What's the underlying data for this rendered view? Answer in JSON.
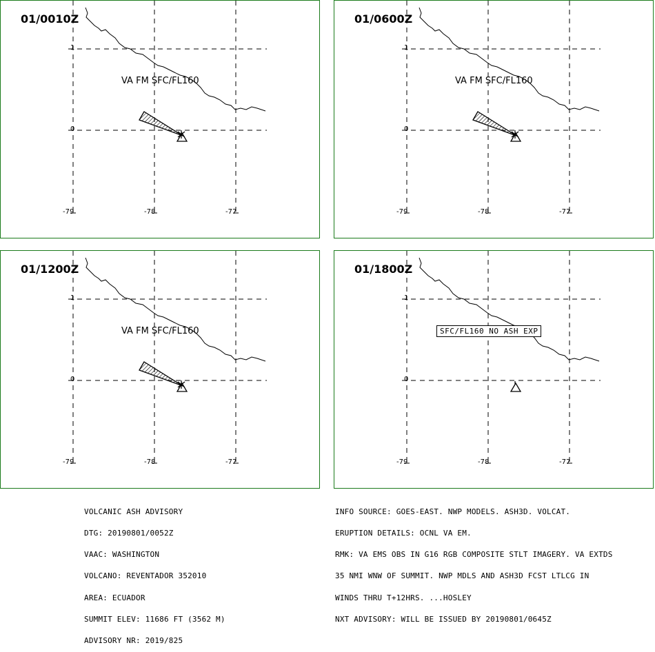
{
  "panels": [
    {
      "time": "01/0010Z",
      "label": "VA FM SFC/FL160",
      "ash": true
    },
    {
      "time": "01/0600Z",
      "label": "VA FM SFC/FL160",
      "ash": true
    },
    {
      "time": "01/1200Z",
      "label": "VA FM SFC/FL160",
      "ash": true
    },
    {
      "time": "01/1800Z",
      "label": "SFC/FL160 NO ASH EXP",
      "ash": false
    }
  ],
  "axes": {
    "lat_labels": [
      "1",
      "0"
    ],
    "lon_labels": [
      "-79",
      "-78",
      "-77"
    ]
  },
  "advisory_left": [
    "VOLCANIC ASH ADVISORY",
    "DTG: 20190801/0052Z",
    "VAAC: WASHINGTON",
    "VOLCANO: REVENTADOR 352010",
    "AREA: ECUADOR",
    "SUMMIT ELEV: 11686 FT (3562 M)",
    "ADVISORY NR: 2019/825"
  ],
  "advisory_right": [
    "INFO SOURCE: GOES-EAST. NWP MODELS. ASH3D. VOLCAT.",
    "ERUPTION DETAILS: OCNL VA EM.",
    "RMK: VA EMS OBS IN G16 RGB COMPOSITE STLT IMAGERY. VA EXTDS",
    "35 NMI WNW OF SUMMIT. NWP MDLS AND ASH3D FCST LTLCG IN",
    "WINDS THRU T+12HRS. ...HOSLEY",
    "NXT ADVISORY: WILL BE ISSUED BY 20190801/0645Z"
  ],
  "colors": {
    "frame": "#1a7a1a",
    "lines": "#000000"
  }
}
